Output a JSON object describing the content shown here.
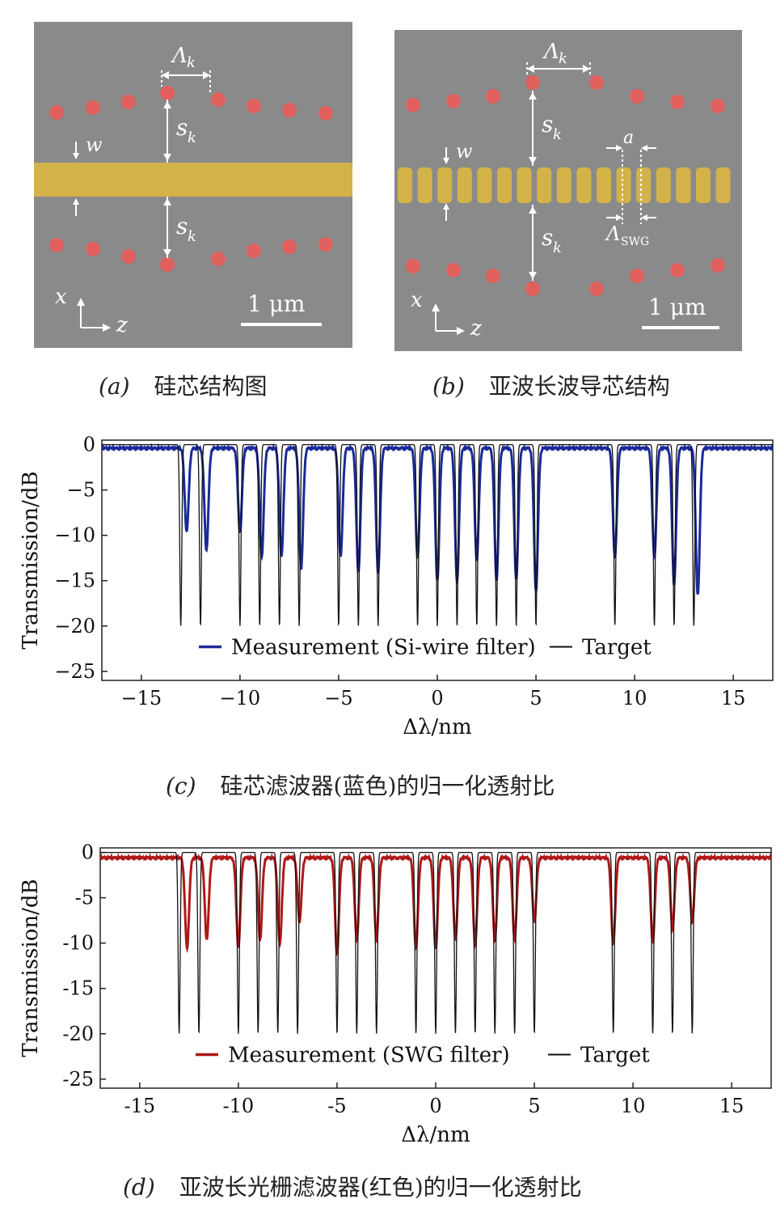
{
  "panel_a": {
    "labels": {
      "lambda": "Λ",
      "lambda_sub": "k",
      "s": "s",
      "s_sub": "k",
      "w": "w",
      "x": "x",
      "z": "z",
      "scale": "1 μm"
    },
    "caption_tag": "(a)",
    "caption_text": "硅芯结构图"
  },
  "panel_b": {
    "labels": {
      "lambda": "Λ",
      "lambda_sub": "k",
      "s": "s",
      "s_sub": "k",
      "w": "w",
      "a": "a",
      "lambda_swg": "Λ",
      "lambda_swg_sub": "SWG",
      "x": "x",
      "z": "z",
      "scale": "1 μm"
    },
    "caption_tag": "(b)",
    "caption_text": "亚波长波导芯结构"
  },
  "captions": {
    "c_tag": "(c)",
    "c_text": "硅芯滤波器(蓝色)的归一化透射比",
    "d_tag": "(d)",
    "d_text": "亚波长光栅滤波器(红色)的归一化透射比"
  },
  "colors": {
    "sem_background": "#8a8a8a",
    "waveguide": "#d4b24a",
    "scatterer": "#e0605e",
    "blue_series": "#1a2a9a",
    "red_series": "#b01818",
    "target_series": "#111111"
  },
  "chart_data": [
    {
      "type": "line",
      "xlabel": "Δλ/nm",
      "ylabel": "Transmission/dB",
      "xlim": [
        -17,
        17
      ],
      "ylim": [
        -26,
        0.5
      ],
      "xticks": [
        -15,
        -10,
        -5,
        0,
        5,
        10,
        15
      ],
      "xtick_labels": [
        "−15",
        "−10",
        "−5",
        "0",
        "5",
        "10",
        "15"
      ],
      "yticks": [
        0,
        -5,
        -10,
        -15,
        -20,
        -25
      ],
      "ytick_labels": [
        "0",
        "−5",
        "−10",
        "−15",
        "−20",
        "−25"
      ],
      "legend_position": "bottom-center",
      "series": [
        {
          "name": "Measurement (Si-wire filter)",
          "color": "#1a2a9a",
          "baseline": -0.3,
          "dips": [
            {
              "x": -12.7,
              "y": -9.5
            },
            {
              "x": -11.7,
              "y": -11.5
            },
            {
              "x": -10.0,
              "y": -9.5
            },
            {
              "x": -8.9,
              "y": -12.3
            },
            {
              "x": -7.9,
              "y": -12.3
            },
            {
              "x": -6.9,
              "y": -13.5
            },
            {
              "x": -4.9,
              "y": -12.3
            },
            {
              "x": -4.0,
              "y": -14.0
            },
            {
              "x": -3.0,
              "y": -14.0
            },
            {
              "x": -1.0,
              "y": -12.3
            },
            {
              "x": 0.0,
              "y": -14.8
            },
            {
              "x": 1.0,
              "y": -15.0
            },
            {
              "x": 2.0,
              "y": -12.6
            },
            {
              "x": 3.0,
              "y": -14.8
            },
            {
              "x": 4.0,
              "y": -14.8
            },
            {
              "x": 5.0,
              "y": -16.0
            },
            {
              "x": 9.0,
              "y": -12.3
            },
            {
              "x": 11.0,
              "y": -12.3
            },
            {
              "x": 12.0,
              "y": -15.3
            },
            {
              "x": 13.2,
              "y": -16.5
            }
          ]
        },
        {
          "name": "Target",
          "color": "#111111",
          "baseline": 0,
          "dips": [
            {
              "x": -13,
              "y": -20
            },
            {
              "x": -12,
              "y": -20
            },
            {
              "x": -10,
              "y": -20
            },
            {
              "x": -9,
              "y": -20
            },
            {
              "x": -8,
              "y": -20
            },
            {
              "x": -7,
              "y": -20
            },
            {
              "x": -5,
              "y": -20
            },
            {
              "x": -4,
              "y": -20
            },
            {
              "x": -3,
              "y": -20
            },
            {
              "x": -1,
              "y": -20
            },
            {
              "x": 0,
              "y": -20
            },
            {
              "x": 1,
              "y": -20
            },
            {
              "x": 2,
              "y": -20
            },
            {
              "x": 3,
              "y": -20
            },
            {
              "x": 4,
              "y": -20
            },
            {
              "x": 5,
              "y": -20
            },
            {
              "x": 9,
              "y": -20
            },
            {
              "x": 11,
              "y": -20
            },
            {
              "x": 12,
              "y": -20
            },
            {
              "x": 13,
              "y": -20
            }
          ]
        }
      ]
    },
    {
      "type": "line",
      "xlabel": "Δλ/nm",
      "ylabel": "Transmission/dB",
      "xlim": [
        -17,
        17
      ],
      "ylim": [
        -26,
        0.5
      ],
      "xticks": [
        -15,
        -10,
        -5,
        0,
        5,
        10,
        15
      ],
      "xtick_labels": [
        "-15",
        "-10",
        "-5",
        "0",
        "5",
        "10",
        "15"
      ],
      "yticks": [
        0,
        -5,
        -10,
        -15,
        -20,
        -25
      ],
      "ytick_labels": [
        "0",
        "-5",
        "-10",
        "-15",
        "-20",
        "-25"
      ],
      "legend_position": "bottom-center",
      "series": [
        {
          "name": "Measurement (SWG filter)",
          "color": "#b01818",
          "baseline": -0.5,
          "dips": [
            {
              "x": -12.6,
              "y": -10.5
            },
            {
              "x": -11.6,
              "y": -9.5
            },
            {
              "x": -10.0,
              "y": -10.3
            },
            {
              "x": -8.9,
              "y": -9.5
            },
            {
              "x": -7.9,
              "y": -10.0
            },
            {
              "x": -6.9,
              "y": -7.5
            },
            {
              "x": -5.0,
              "y": -11.0
            },
            {
              "x": -4.0,
              "y": -9.5
            },
            {
              "x": -3.0,
              "y": -9.5
            },
            {
              "x": -1.0,
              "y": -10.5
            },
            {
              "x": 0.0,
              "y": -10.5
            },
            {
              "x": 1.0,
              "y": -9.5
            },
            {
              "x": 2.0,
              "y": -10.0
            },
            {
              "x": 3.0,
              "y": -9.5
            },
            {
              "x": 4.0,
              "y": -9.5
            },
            {
              "x": 5.0,
              "y": -7.5
            },
            {
              "x": 9.0,
              "y": -10.0
            },
            {
              "x": 11.0,
              "y": -9.8
            },
            {
              "x": 12.0,
              "y": -8.3
            },
            {
              "x": 13.0,
              "y": -7.5
            }
          ]
        },
        {
          "name": "Target",
          "color": "#111111",
          "baseline": 0,
          "dips": [
            {
              "x": -13,
              "y": -20
            },
            {
              "x": -12,
              "y": -20
            },
            {
              "x": -10,
              "y": -20
            },
            {
              "x": -9,
              "y": -20
            },
            {
              "x": -8,
              "y": -20
            },
            {
              "x": -7,
              "y": -20
            },
            {
              "x": -5,
              "y": -20
            },
            {
              "x": -4,
              "y": -20
            },
            {
              "x": -3,
              "y": -20
            },
            {
              "x": -1,
              "y": -20
            },
            {
              "x": 0,
              "y": -20
            },
            {
              "x": 1,
              "y": -20
            },
            {
              "x": 2,
              "y": -20
            },
            {
              "x": 3,
              "y": -20
            },
            {
              "x": 4,
              "y": -20
            },
            {
              "x": 5,
              "y": -20
            },
            {
              "x": 9,
              "y": -20
            },
            {
              "x": 11,
              "y": -20
            },
            {
              "x": 12,
              "y": -20
            },
            {
              "x": 13,
              "y": -20
            }
          ]
        }
      ]
    }
  ]
}
